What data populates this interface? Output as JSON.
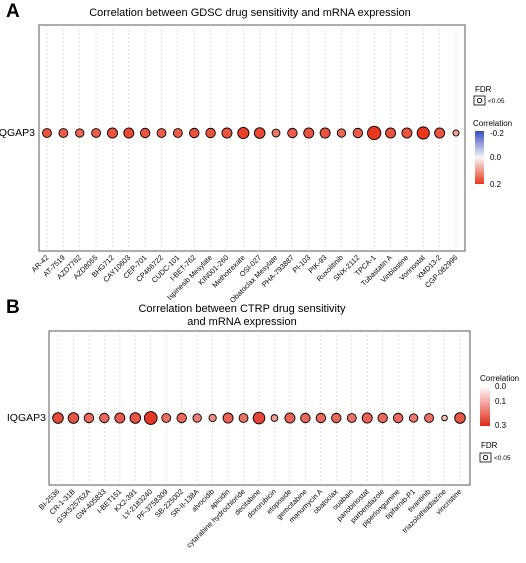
{
  "chart_data": [
    {
      "type": "scatter",
      "panel_label": "A",
      "title": "Correlation between GDSC drug sensitivity and mRNA expression",
      "gene": "IQGAP3",
      "categories": [
        "AR-42",
        "AT-7519",
        "AZD7762",
        "AZD8055",
        "BHG712",
        "CAY10603",
        "CEP-701",
        "CP466722",
        "CUDC-101",
        "I-BET-762",
        "Ispinesib Mesylate",
        "KIN001-260",
        "Methotrexate",
        "OSI-027",
        "Obatoclax Mesylate",
        "PHA-793887",
        "PI-103",
        "PIK-93",
        "Ruxolitinib",
        "SNX-2112",
        "TPCA-1",
        "Tubastatin A",
        "Vinblastine",
        "Vorinostat",
        "XMD13-2",
        "CGP-082996"
      ],
      "correlation": [
        0.17,
        0.16,
        0.15,
        0.16,
        0.17,
        0.18,
        0.17,
        0.16,
        0.16,
        0.17,
        0.17,
        0.17,
        0.19,
        0.18,
        0.13,
        0.16,
        0.17,
        0.17,
        0.15,
        0.16,
        0.21,
        0.17,
        0.17,
        0.2,
        0.17,
        0.09
      ],
      "size": [
        0.45,
        0.45,
        0.4,
        0.45,
        0.55,
        0.55,
        0.5,
        0.45,
        0.45,
        0.5,
        0.5,
        0.55,
        0.65,
        0.6,
        0.35,
        0.5,
        0.55,
        0.55,
        0.4,
        0.5,
        0.85,
        0.55,
        0.55,
        0.75,
        0.55,
        0.2
      ],
      "legend": {
        "fdr_title": "FDR",
        "fdr_item": "<0.05",
        "color_title": "Correlation",
        "color_ticks": [
          "-0.2",
          "0.0",
          "0.2"
        ],
        "color_range": [
          -0.2,
          0.2
        ],
        "colors": {
          "low": "#3b4cc0",
          "mid": "#f7f7f7",
          "high": "#e8371d"
        }
      }
    },
    {
      "type": "scatter",
      "panel_label": "B",
      "title_lines": [
        "Correlation between CTRP drug sensitivity",
        "and mRNA expression"
      ],
      "gene": "IQGAP3",
      "categories": [
        "BI-2536",
        "CR-1-31B",
        "GSK525762A",
        "GW-405833",
        "I-BET151",
        "KX2-391",
        "LY-2183240",
        "PF-3758309",
        "SB-225002",
        "SR-II-138A",
        "alvocidib",
        "apicidin",
        "cytarabine hydrochloride",
        "decitabine",
        "doxorubicin",
        "etoposide",
        "gemcitabine",
        "manumycin A",
        "obatoclax",
        "ouabain",
        "panobinostat",
        "parbendazole",
        "piperlongumine",
        "tipifarnib-P1",
        "tivantinib",
        "triazolothiadiazine",
        "vincristine"
      ],
      "correlation": [
        0.25,
        0.24,
        0.21,
        0.21,
        0.23,
        0.24,
        0.28,
        0.2,
        0.21,
        0.18,
        0.16,
        0.22,
        0.2,
        0.26,
        0.14,
        0.22,
        0.21,
        0.21,
        0.21,
        0.2,
        0.22,
        0.21,
        0.21,
        0.19,
        0.2,
        0.09,
        0.24
      ],
      "size": [
        0.6,
        0.6,
        0.5,
        0.5,
        0.55,
        0.6,
        0.8,
        0.45,
        0.5,
        0.4,
        0.3,
        0.55,
        0.45,
        0.7,
        0.25,
        0.55,
        0.5,
        0.5,
        0.5,
        0.45,
        0.55,
        0.5,
        0.5,
        0.4,
        0.45,
        0.15,
        0.6
      ],
      "legend": {
        "fdr_title": "FDR",
        "fdr_item": "<0.05",
        "color_title": "Correlation",
        "color_ticks": [
          "0.0",
          "0.1",
          "0.3"
        ],
        "color_range": [
          0.0,
          0.3
        ],
        "colors": {
          "low": "#ffffff",
          "high": "#e02a18"
        }
      }
    }
  ]
}
